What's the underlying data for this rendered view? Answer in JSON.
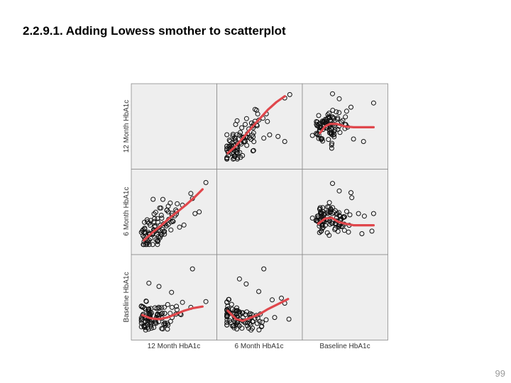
{
  "slide": {
    "title": "2.2.9.1. Adding Lowess smother to scatterplot",
    "page_number": "99"
  },
  "chart_data": {
    "type": "scatter",
    "subtype": "scatterplot-matrix",
    "fit_line": "lowess",
    "fit_line_color": "#e0474c",
    "panel_background": "#eeeeee",
    "marker": "open-circle",
    "grid": false,
    "variables": [
      "12 Month HbA1c",
      "6 Month HbA1c",
      "Baseline HbA1c"
    ],
    "x_labels": [
      "12 Month HbA1c",
      "6 Month HbA1c",
      "Baseline HbA1c"
    ],
    "y_labels": [
      "12 Month HbA1c",
      "6 Month HbA1c",
      "Baseline HbA1c"
    ],
    "range": [
      5,
      13
    ],
    "panels": [
      {
        "row": 0,
        "col": 1,
        "x": "6 Month HbA1c",
        "y": "12 Month HbA1c",
        "outliers": [
          [
            9.8,
            10.5
          ],
          [
            12.0,
            12.4
          ],
          [
            12.6,
            12.8
          ],
          [
            10.2,
            8.0
          ],
          [
            11.2,
            7.8
          ],
          [
            12.0,
            7.2
          ],
          [
            9.5,
            7.6
          ]
        ],
        "lowess": [
          [
            5.2,
            5.8
          ],
          [
            6.0,
            6.5
          ],
          [
            7.0,
            7.6
          ],
          [
            8.0,
            8.8
          ],
          [
            9.0,
            9.9
          ],
          [
            10.0,
            11.0
          ],
          [
            11.0,
            11.9
          ],
          [
            12.0,
            12.6
          ]
        ]
      },
      {
        "row": 0,
        "col": 2,
        "x": "Baseline HbA1c",
        "y": "12 Month HbA1c",
        "outliers": [
          [
            7.5,
            12.9
          ],
          [
            8.3,
            12.3
          ],
          [
            9.7,
            11.3
          ],
          [
            12.4,
            11.8
          ],
          [
            9.0,
            9.2
          ],
          [
            10.0,
            7.5
          ],
          [
            11.2,
            7.2
          ],
          [
            7.4,
            6.4
          ]
        ],
        "lowess": [
          [
            6.0,
            8.2
          ],
          [
            6.6,
            9.0
          ],
          [
            7.2,
            9.3
          ],
          [
            8.0,
            9.3
          ],
          [
            9.0,
            9.0
          ],
          [
            10.0,
            8.9
          ],
          [
            11.0,
            8.9
          ],
          [
            12.4,
            8.9
          ]
        ]
      },
      {
        "row": 1,
        "col": 0,
        "x": "12 Month HbA1c",
        "y": "6 Month HbA1c",
        "outliers": [
          [
            12.8,
            12.5
          ],
          [
            11.0,
            11.2
          ],
          [
            11.2,
            10.6
          ],
          [
            10.0,
            9.8
          ],
          [
            11.5,
            8.8
          ],
          [
            12.0,
            9.0
          ],
          [
            6.5,
            10.5
          ]
        ],
        "lowess": [
          [
            5.4,
            5.6
          ],
          [
            6.5,
            6.6
          ],
          [
            7.5,
            7.4
          ],
          [
            8.5,
            8.3
          ],
          [
            9.5,
            9.1
          ],
          [
            10.5,
            9.9
          ],
          [
            11.5,
            10.8
          ],
          [
            12.4,
            11.7
          ]
        ]
      },
      {
        "row": 1,
        "col": 2,
        "x": "Baseline HbA1c",
        "y": "6 Month HbA1c",
        "outliers": [
          [
            7.5,
            12.4
          ],
          [
            8.3,
            11.5
          ],
          [
            9.7,
            11.3
          ],
          [
            9.8,
            10.7
          ],
          [
            10.6,
            8.8
          ],
          [
            11.3,
            8.5
          ],
          [
            12.4,
            8.8
          ],
          [
            12.2,
            6.7
          ],
          [
            11.0,
            6.4
          ],
          [
            7.1,
            6.2
          ]
        ],
        "lowess": [
          [
            5.8,
            7.6
          ],
          [
            6.6,
            8.2
          ],
          [
            7.4,
            8.3
          ],
          [
            8.2,
            7.8
          ],
          [
            9.0,
            7.6
          ],
          [
            10.0,
            7.4
          ],
          [
            11.0,
            7.4
          ],
          [
            12.4,
            7.4
          ]
        ]
      },
      {
        "row": 2,
        "col": 0,
        "x": "12 Month HbA1c",
        "y": "Baseline HbA1c",
        "outliers": [
          [
            11.2,
            12.4
          ],
          [
            6.0,
            10.7
          ],
          [
            7.2,
            10.3
          ],
          [
            8.7,
            9.6
          ],
          [
            10.0,
            8.4
          ],
          [
            12.8,
            8.5
          ],
          [
            11.0,
            7.8
          ]
        ],
        "lowess": [
          [
            5.2,
            6.9
          ],
          [
            6.2,
            6.5
          ],
          [
            7.2,
            6.4
          ],
          [
            8.2,
            6.6
          ],
          [
            9.2,
            7.0
          ],
          [
            10.2,
            7.4
          ],
          [
            11.2,
            7.7
          ],
          [
            12.4,
            7.9
          ]
        ]
      },
      {
        "row": 2,
        "col": 1,
        "x": "6 Month HbA1c",
        "y": "Baseline HbA1c",
        "outliers": [
          [
            9.5,
            12.4
          ],
          [
            6.6,
            11.2
          ],
          [
            7.4,
            10.6
          ],
          [
            8.9,
            9.7
          ],
          [
            10.5,
            8.7
          ],
          [
            11.6,
            8.9
          ],
          [
            12.0,
            8.3
          ],
          [
            12.5,
            6.4
          ],
          [
            10.8,
            6.6
          ]
        ],
        "lowess": [
          [
            5.2,
            7.4
          ],
          [
            6.2,
            6.4
          ],
          [
            7.0,
            6.2
          ],
          [
            8.0,
            6.6
          ],
          [
            9.0,
            7.0
          ],
          [
            10.0,
            7.6
          ],
          [
            11.0,
            8.1
          ],
          [
            12.4,
            8.8
          ]
        ]
      }
    ]
  }
}
